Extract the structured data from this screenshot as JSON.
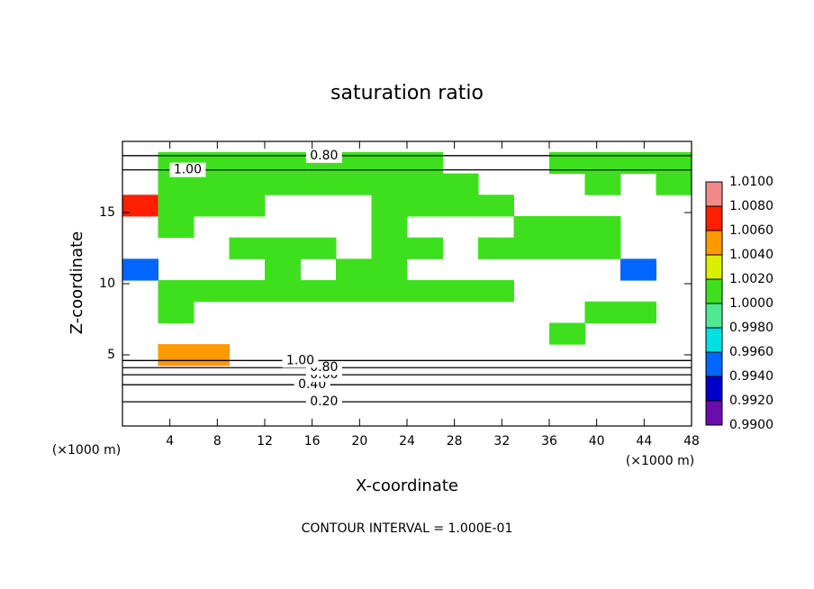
{
  "chart_data": {
    "type": "contour",
    "title": "saturation ratio",
    "xlabel": "X-coordinate",
    "ylabel": "Z-coordinate",
    "x_unit_left": "(×1000 m)",
    "x_unit_right": "(×1000 m)",
    "footnote": "CONTOUR INTERVAL = 1.000E-01",
    "xlim": [
      0,
      48
    ],
    "ylim": [
      0,
      20
    ],
    "xticks": [
      4,
      8,
      12,
      16,
      20,
      24,
      28,
      32,
      36,
      40,
      44,
      48
    ],
    "yticks": [
      5,
      10,
      15
    ],
    "field": {
      "x": [
        1.5,
        4.5,
        7.5,
        10.5,
        13.5,
        16.5,
        19.5,
        22.5,
        25.5,
        28.5,
        31.5,
        34.5,
        37.5,
        40.5,
        43.5,
        46.5
      ],
      "z": [
        18.5,
        17,
        15.5,
        14,
        12.5,
        11,
        9.5,
        8,
        6.5,
        5
      ],
      "values": [
        [
          null,
          1.001,
          1.001,
          1.001,
          1.001,
          1.001,
          1.001,
          1.001,
          1.001,
          null,
          null,
          null,
          1.001,
          1.001,
          1.001,
          1.001
        ],
        [
          null,
          1.001,
          1.001,
          1.001,
          1.001,
          1.001,
          1.001,
          1.001,
          1.001,
          1.001,
          null,
          null,
          null,
          1.001,
          null,
          1.001
        ],
        [
          1.007,
          1.001,
          1.001,
          1.001,
          null,
          null,
          null,
          1.001,
          1.001,
          1.001,
          1.001,
          null,
          null,
          null,
          null,
          null
        ],
        [
          null,
          1.001,
          null,
          null,
          null,
          null,
          null,
          1.001,
          null,
          null,
          null,
          1.001,
          1.001,
          1.001,
          null,
          null
        ],
        [
          null,
          null,
          null,
          1.001,
          1.001,
          1.001,
          null,
          1.001,
          1.001,
          null,
          1.001,
          1.001,
          1.001,
          1.001,
          null,
          null
        ],
        [
          0.994,
          null,
          null,
          null,
          1.001,
          null,
          1.001,
          1.001,
          null,
          null,
          null,
          null,
          null,
          null,
          0.994,
          null
        ],
        [
          null,
          1.001,
          1.001,
          1.001,
          1.001,
          1.001,
          1.001,
          1.001,
          1.001,
          1.001,
          1.001,
          null,
          null,
          null,
          null,
          null
        ],
        [
          null,
          1.001,
          null,
          null,
          null,
          null,
          null,
          null,
          null,
          null,
          null,
          null,
          null,
          1.001,
          1.001,
          null
        ],
        [
          null,
          null,
          null,
          null,
          null,
          null,
          null,
          null,
          null,
          null,
          null,
          null,
          1.001,
          null,
          null,
          null
        ],
        [
          null,
          1.005,
          1.005,
          null,
          null,
          null,
          null,
          null,
          null,
          null,
          null,
          null,
          null,
          null,
          null,
          null
        ]
      ]
    },
    "contours": [
      {
        "level": {
          "value": 0.2,
          "label": "0.20"
        },
        "z": 1.7,
        "x": 17
      },
      {
        "level": {
          "value": 0.4,
          "label": "0.40"
        },
        "z": 2.9,
        "x": 16
      },
      {
        "level": {
          "value": 0.6,
          "label": "0.60"
        },
        "z": 3.6,
        "x": 17
      },
      {
        "level": {
          "value": 0.8,
          "label": "0.80"
        },
        "z": 4.1,
        "x": 17
      },
      {
        "level": {
          "value": 1.0,
          "label": "1.00"
        },
        "z": 4.6,
        "x": 15
      },
      {
        "level": {
          "value": 0.8,
          "label": "0.80"
        },
        "z": 19.0,
        "x": 17
      },
      {
        "level": {
          "value": 1.0,
          "label": "1.00"
        },
        "z": 18.0,
        "x": 5.5
      }
    ],
    "colorbar": {
      "lim": [
        0.99,
        1.01
      ],
      "ticks": [
        {
          "value": 0.99,
          "label": "0.9900"
        },
        {
          "value": 0.992,
          "label": "0.9920"
        },
        {
          "value": 0.994,
          "label": "0.9940"
        },
        {
          "value": 0.996,
          "label": "0.9960"
        },
        {
          "value": 0.998,
          "label": "0.9980"
        },
        {
          "value": 1.0,
          "label": "1.0000"
        },
        {
          "value": 1.002,
          "label": "1.0020"
        },
        {
          "value": 1.004,
          "label": "1.0040"
        },
        {
          "value": 1.006,
          "label": "1.0060"
        },
        {
          "value": 1.008,
          "label": "1.0080"
        },
        {
          "value": 1.01,
          "label": "1.0100"
        }
      ],
      "colors": [
        "#6a0dad",
        "#0000c8",
        "#0066ff",
        "#00e0e0",
        "#50e890",
        "#3ee01e",
        "#d8f000",
        "#ff9900",
        "#ff2000",
        "#f28a8a"
      ]
    }
  }
}
